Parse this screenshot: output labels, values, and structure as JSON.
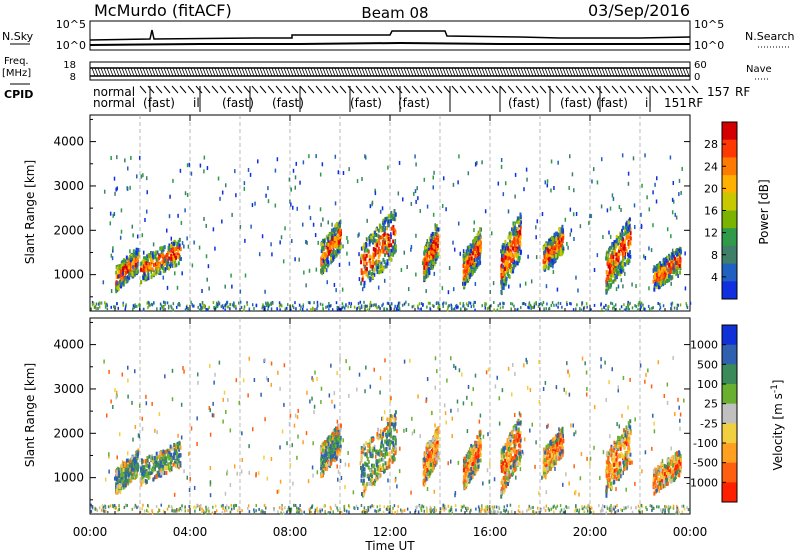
{
  "header": {
    "radar": "McMurdo (fitACF)",
    "beam": "Beam 08",
    "date": "03/Sep/2016"
  },
  "top_panels": {
    "nsky_label": "N.Sky",
    "nsky_ticks": [
      "10^5",
      "10^0"
    ],
    "nsearch_label": "N.Search",
    "nsearch_ticks": [
      "10^5",
      "10^0"
    ],
    "freq_label_1": "Freq.",
    "freq_label_2": "[MHz]",
    "freq_ticks": [
      "18",
      "8"
    ],
    "nave_label": "Nave",
    "nave_ticks": [
      "60",
      "0"
    ],
    "cpid_label": "CPID",
    "cpid_row1": "normal",
    "cpid_row2": "normal",
    "cpid_mid_texts": [
      "(fast)",
      "il",
      "(fast)",
      "(fast)",
      "(fast)",
      "(fast)",
      "(fast)",
      "(fast)"
    ],
    "cpid_right_texts": [
      "157",
      "RF",
      "151",
      "RF"
    ]
  },
  "chart_data": [
    {
      "type": "scatter",
      "title": "",
      "ylabel": "Slant Range [km]",
      "xlabel": "",
      "ylim": [
        180,
        4600
      ],
      "xlim": [
        0,
        24
      ],
      "yticks": [
        "1000",
        "2000",
        "3000",
        "4000"
      ],
      "colorbar": {
        "label": "Power [dB]",
        "ticks": [
          "28",
          "24",
          "20",
          "16",
          "12",
          "8",
          "4"
        ],
        "colors": [
          "#d40000",
          "#ff3800",
          "#ff7a00",
          "#ffb000",
          "#c8c800",
          "#7ab400",
          "#2e9a4a",
          "#3f7f6a",
          "#2060c0",
          "#1030e0"
        ]
      },
      "series": [
        {
          "clusters": [
            {
              "t0": 1.0,
              "t1": 1.9,
              "r0": 700,
              "r1": 1500
            },
            {
              "t0": 2.0,
              "t1": 3.6,
              "r0": 900,
              "r1": 1700
            },
            {
              "t0": 9.2,
              "t1": 10.0,
              "r0": 1100,
              "r1": 2100
            },
            {
              "t0": 10.8,
              "t1": 12.2,
              "r0": 700,
              "r1": 2300
            },
            {
              "t0": 13.3,
              "t1": 13.9,
              "r0": 900,
              "r1": 2000
            },
            {
              "t0": 14.9,
              "t1": 15.6,
              "r0": 800,
              "r1": 1900
            },
            {
              "t0": 16.4,
              "t1": 17.2,
              "r0": 700,
              "r1": 2200
            },
            {
              "t0": 18.1,
              "t1": 18.9,
              "r0": 1100,
              "r1": 2000
            },
            {
              "t0": 20.6,
              "t1": 21.6,
              "r0": 700,
              "r1": 2100
            },
            {
              "t0": 22.5,
              "t1": 23.6,
              "r0": 700,
              "r1": 1500
            }
          ]
        }
      ]
    },
    {
      "type": "scatter",
      "title": "",
      "ylabel": "Slant Range [km]",
      "xlabel": "Time UT",
      "ylim": [
        180,
        4600
      ],
      "xlim": [
        0,
        24
      ],
      "yticks": [
        "1000",
        "2000",
        "3000",
        "4000"
      ],
      "xticks": [
        "00:00",
        "04:00",
        "08:00",
        "12:00",
        "16:00",
        "20:00",
        "00:00"
      ],
      "colorbar": {
        "label": "Velocity [m s-1]",
        "ticks": [
          "1000",
          "500",
          "100",
          "25",
          "-25",
          "-100",
          "-500",
          "-1000"
        ],
        "colors": [
          "#1030d8",
          "#3060b0",
          "#3a8a5a",
          "#6ab030",
          "#c0c0c0",
          "#f0d040",
          "#ffa020",
          "#ff6010",
          "#ff2000"
        ]
      },
      "series": [
        {
          "clusters": [
            {
              "t0": 1.0,
              "t1": 1.9,
              "r0": 700,
              "r1": 1500
            },
            {
              "t0": 2.0,
              "t1": 3.6,
              "r0": 900,
              "r1": 1700
            },
            {
              "t0": 9.2,
              "t1": 10.0,
              "r0": 1100,
              "r1": 2100
            },
            {
              "t0": 10.8,
              "t1": 12.2,
              "r0": 700,
              "r1": 2300
            },
            {
              "t0": 13.3,
              "t1": 13.9,
              "r0": 900,
              "r1": 2000
            },
            {
              "t0": 14.9,
              "t1": 15.6,
              "r0": 800,
              "r1": 1900
            },
            {
              "t0": 16.4,
              "t1": 17.2,
              "r0": 700,
              "r1": 2200
            },
            {
              "t0": 18.1,
              "t1": 18.9,
              "r0": 1100,
              "r1": 2000
            },
            {
              "t0": 20.6,
              "t1": 21.6,
              "r0": 700,
              "r1": 2100
            },
            {
              "t0": 22.5,
              "t1": 23.6,
              "r0": 700,
              "r1": 1500
            }
          ]
        }
      ]
    }
  ]
}
